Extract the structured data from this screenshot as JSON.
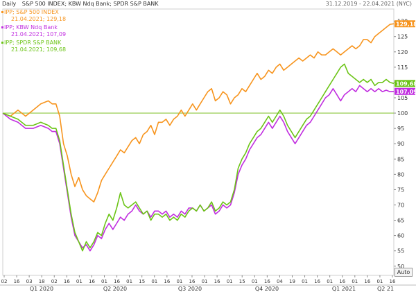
{
  "header": {
    "frequency": "Daily",
    "instruments": "S&P 500 INDEX; KBW Ndq Bank; SPDR S&P BANK",
    "date_range": "31.12.2019 - 22.04.2021 (NYC)"
  },
  "legend": [
    {
      "line1": "IPP; S&P 500 INDEX",
      "line2": "21.04.2021; 129,18",
      "color": "#f7941d"
    },
    {
      "line1": "IPP; KBW Ndq Bank",
      "line2": "21.04.2021; 107,09",
      "color": "#c12ee0"
    },
    {
      "line1": "IPP; SPDR S&P BANK",
      "line2": "21.04.2021; 109,68",
      "color": "#6cc417"
    }
  ],
  "auto_button": "Auto",
  "chart_data": {
    "type": "line",
    "reference_line": 100,
    "reference_color": "#8cc63f",
    "ylim": [
      47,
      134
    ],
    "yticks": [
      50,
      55,
      60,
      65,
      70,
      75,
      80,
      85,
      90,
      95,
      100,
      105,
      110,
      115,
      120,
      125,
      130
    ],
    "x_day_ticks": [
      "02",
      "16",
      "03",
      "18",
      "02",
      "16",
      "01",
      "16",
      "01",
      "16",
      "01",
      "15",
      "01",
      "16",
      "01",
      "16",
      "01",
      "16",
      "01",
      "15",
      "01",
      "16",
      "04",
      "19",
      "01",
      "16",
      "01",
      "16",
      "01",
      "16",
      "01",
      "16"
    ],
    "x_quarter_labels": [
      "Q1 2020",
      "Q2 2020",
      "Q3 2020",
      "Q4 2020",
      "Q1 2021",
      "Q2 21"
    ],
    "value_labels": [
      {
        "text": "129,18",
        "value": 129.18,
        "color": "#f7941d"
      },
      {
        "text": "109,68",
        "value": 109.68,
        "color": "#6cc417"
      },
      {
        "text": "107,09",
        "value": 107.09,
        "color": "#c12ee0"
      }
    ],
    "series": [
      {
        "name": "IPP; S&P 500 INDEX",
        "color": "#f7941d",
        "points": [
          [
            0,
            100
          ],
          [
            8,
            99
          ],
          [
            16,
            101
          ],
          [
            24,
            99
          ],
          [
            32,
            101
          ],
          [
            40,
            103
          ],
          [
            48,
            104
          ],
          [
            52,
            103
          ],
          [
            56,
            103
          ],
          [
            60,
            99
          ],
          [
            64,
            90
          ],
          [
            68,
            86
          ],
          [
            72,
            80
          ],
          [
            76,
            76
          ],
          [
            80,
            79
          ],
          [
            84,
            75
          ],
          [
            88,
            73
          ],
          [
            92,
            72
          ],
          [
            96,
            71
          ],
          [
            100,
            74
          ],
          [
            104,
            78
          ],
          [
            108,
            80
          ],
          [
            112,
            82
          ],
          [
            116,
            84
          ],
          [
            120,
            86
          ],
          [
            124,
            88
          ],
          [
            128,
            87
          ],
          [
            132,
            89
          ],
          [
            136,
            91
          ],
          [
            140,
            92
          ],
          [
            144,
            90
          ],
          [
            148,
            93
          ],
          [
            152,
            94
          ],
          [
            156,
            96
          ],
          [
            160,
            93
          ],
          [
            164,
            97
          ],
          [
            168,
            97
          ],
          [
            172,
            98
          ],
          [
            176,
            96
          ],
          [
            180,
            98
          ],
          [
            184,
            99
          ],
          [
            188,
            101
          ],
          [
            192,
            99
          ],
          [
            196,
            101
          ],
          [
            200,
            103
          ],
          [
            204,
            101
          ],
          [
            208,
            103
          ],
          [
            212,
            105
          ],
          [
            216,
            107
          ],
          [
            220,
            108
          ],
          [
            224,
            104
          ],
          [
            228,
            105
          ],
          [
            232,
            107
          ],
          [
            236,
            106
          ],
          [
            240,
            103
          ],
          [
            244,
            105
          ],
          [
            248,
            106
          ],
          [
            252,
            108
          ],
          [
            256,
            107
          ],
          [
            260,
            109
          ],
          [
            264,
            111
          ],
          [
            268,
            113
          ],
          [
            272,
            111
          ],
          [
            276,
            112
          ],
          [
            280,
            114
          ],
          [
            284,
            113
          ],
          [
            288,
            115
          ],
          [
            292,
            116
          ],
          [
            296,
            114
          ],
          [
            300,
            115
          ],
          [
            304,
            116
          ],
          [
            308,
            117
          ],
          [
            312,
            118
          ],
          [
            316,
            117
          ],
          [
            320,
            118
          ],
          [
            324,
            119
          ],
          [
            328,
            118
          ],
          [
            332,
            120
          ],
          [
            336,
            119
          ],
          [
            340,
            119
          ],
          [
            344,
            120
          ],
          [
            348,
            121
          ],
          [
            352,
            120
          ],
          [
            356,
            119
          ],
          [
            360,
            120
          ],
          [
            364,
            121
          ],
          [
            368,
            122
          ],
          [
            372,
            121
          ],
          [
            376,
            122
          ],
          [
            380,
            124
          ],
          [
            384,
            124
          ],
          [
            388,
            123
          ],
          [
            392,
            125
          ],
          [
            396,
            126
          ],
          [
            400,
            127
          ],
          [
            404,
            128
          ],
          [
            408,
            129
          ],
          [
            412,
            129.18
          ]
        ]
      },
      {
        "name": "IPP; KBW Ndq Bank",
        "color": "#c12ee0",
        "points": [
          [
            0,
            100
          ],
          [
            8,
            98
          ],
          [
            16,
            97
          ],
          [
            24,
            95
          ],
          [
            32,
            95
          ],
          [
            40,
            96
          ],
          [
            48,
            95
          ],
          [
            52,
            94
          ],
          [
            56,
            94
          ],
          [
            60,
            90
          ],
          [
            64,
            82
          ],
          [
            68,
            74
          ],
          [
            72,
            66
          ],
          [
            76,
            60
          ],
          [
            80,
            58
          ],
          [
            84,
            56
          ],
          [
            88,
            57
          ],
          [
            92,
            55
          ],
          [
            96,
            57
          ],
          [
            100,
            60
          ],
          [
            104,
            59
          ],
          [
            108,
            62
          ],
          [
            112,
            64
          ],
          [
            116,
            62
          ],
          [
            120,
            64
          ],
          [
            124,
            66
          ],
          [
            128,
            65
          ],
          [
            132,
            67
          ],
          [
            136,
            68
          ],
          [
            140,
            70
          ],
          [
            144,
            68
          ],
          [
            148,
            67
          ],
          [
            152,
            68
          ],
          [
            156,
            66
          ],
          [
            160,
            68
          ],
          [
            164,
            68
          ],
          [
            168,
            67
          ],
          [
            172,
            68
          ],
          [
            176,
            66
          ],
          [
            180,
            67
          ],
          [
            184,
            66
          ],
          [
            188,
            68
          ],
          [
            192,
            67
          ],
          [
            196,
            69
          ],
          [
            200,
            69
          ],
          [
            204,
            68
          ],
          [
            208,
            70
          ],
          [
            212,
            68
          ],
          [
            216,
            69
          ],
          [
            220,
            70
          ],
          [
            224,
            67
          ],
          [
            228,
            68
          ],
          [
            232,
            70
          ],
          [
            236,
            69
          ],
          [
            240,
            70
          ],
          [
            244,
            74
          ],
          [
            248,
            80
          ],
          [
            252,
            83
          ],
          [
            256,
            85
          ],
          [
            260,
            88
          ],
          [
            264,
            90
          ],
          [
            268,
            92
          ],
          [
            272,
            93
          ],
          [
            276,
            95
          ],
          [
            280,
            97
          ],
          [
            284,
            95
          ],
          [
            288,
            97
          ],
          [
            292,
            99
          ],
          [
            296,
            97
          ],
          [
            300,
            94
          ],
          [
            304,
            92
          ],
          [
            308,
            90
          ],
          [
            312,
            92
          ],
          [
            316,
            94
          ],
          [
            320,
            96
          ],
          [
            324,
            97
          ],
          [
            328,
            99
          ],
          [
            332,
            101
          ],
          [
            336,
            103
          ],
          [
            340,
            105
          ],
          [
            344,
            106
          ],
          [
            348,
            108
          ],
          [
            352,
            106
          ],
          [
            356,
            104
          ],
          [
            360,
            106
          ],
          [
            364,
            107
          ],
          [
            368,
            108
          ],
          [
            372,
            107
          ],
          [
            376,
            109
          ],
          [
            380,
            108
          ],
          [
            384,
            107
          ],
          [
            388,
            108
          ],
          [
            392,
            107
          ],
          [
            396,
            108
          ],
          [
            400,
            107
          ],
          [
            404,
            107.5
          ],
          [
            408,
            107
          ],
          [
            412,
            107.09
          ]
        ]
      },
      {
        "name": "IPP; SPDR S&P BANK",
        "color": "#6cc417",
        "points": [
          [
            0,
            100
          ],
          [
            8,
            99
          ],
          [
            16,
            98
          ],
          [
            24,
            96
          ],
          [
            32,
            96
          ],
          [
            40,
            97
          ],
          [
            48,
            96
          ],
          [
            52,
            95
          ],
          [
            56,
            95
          ],
          [
            60,
            91
          ],
          [
            64,
            83
          ],
          [
            68,
            75
          ],
          [
            72,
            67
          ],
          [
            76,
            61
          ],
          [
            80,
            58
          ],
          [
            84,
            55
          ],
          [
            88,
            58
          ],
          [
            92,
            56
          ],
          [
            96,
            58
          ],
          [
            100,
            61
          ],
          [
            104,
            60
          ],
          [
            108,
            64
          ],
          [
            112,
            67
          ],
          [
            116,
            65
          ],
          [
            120,
            69
          ],
          [
            124,
            74
          ],
          [
            128,
            70
          ],
          [
            132,
            69
          ],
          [
            136,
            70
          ],
          [
            140,
            71
          ],
          [
            144,
            69
          ],
          [
            148,
            67
          ],
          [
            152,
            68
          ],
          [
            156,
            65
          ],
          [
            160,
            67
          ],
          [
            164,
            67
          ],
          [
            168,
            66
          ],
          [
            172,
            67
          ],
          [
            176,
            65
          ],
          [
            180,
            66
          ],
          [
            184,
            65
          ],
          [
            188,
            67
          ],
          [
            192,
            66
          ],
          [
            196,
            68
          ],
          [
            200,
            69
          ],
          [
            204,
            68
          ],
          [
            208,
            70
          ],
          [
            212,
            68
          ],
          [
            216,
            69
          ],
          [
            220,
            71
          ],
          [
            224,
            68
          ],
          [
            228,
            69
          ],
          [
            232,
            71
          ],
          [
            236,
            70
          ],
          [
            240,
            71
          ],
          [
            244,
            75
          ],
          [
            248,
            82
          ],
          [
            252,
            85
          ],
          [
            256,
            87
          ],
          [
            260,
            90
          ],
          [
            264,
            92
          ],
          [
            268,
            94
          ],
          [
            272,
            95
          ],
          [
            276,
            97
          ],
          [
            280,
            99
          ],
          [
            284,
            97
          ],
          [
            288,
            99
          ],
          [
            292,
            101
          ],
          [
            296,
            99
          ],
          [
            300,
            96
          ],
          [
            304,
            94
          ],
          [
            308,
            92
          ],
          [
            312,
            94
          ],
          [
            316,
            96
          ],
          [
            320,
            98
          ],
          [
            324,
            99
          ],
          [
            328,
            101
          ],
          [
            332,
            103
          ],
          [
            336,
            105
          ],
          [
            340,
            107
          ],
          [
            344,
            109
          ],
          [
            348,
            111
          ],
          [
            352,
            113
          ],
          [
            356,
            115
          ],
          [
            360,
            116
          ],
          [
            364,
            113
          ],
          [
            368,
            112
          ],
          [
            372,
            111
          ],
          [
            376,
            110
          ],
          [
            380,
            111
          ],
          [
            384,
            110
          ],
          [
            388,
            111
          ],
          [
            392,
            109
          ],
          [
            396,
            110
          ],
          [
            400,
            110
          ],
          [
            404,
            111
          ],
          [
            408,
            110
          ],
          [
            412,
            109.68
          ]
        ]
      }
    ]
  }
}
